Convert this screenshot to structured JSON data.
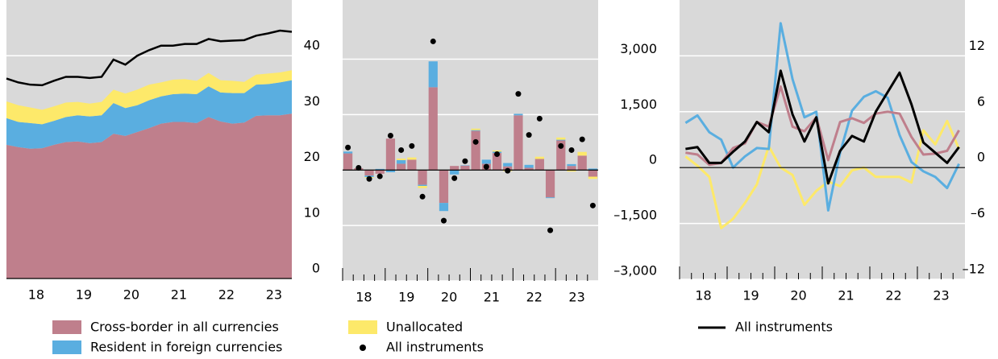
{
  "chart_data": [
    {
      "type": "area",
      "categories": [
        null,
        null,
        "18",
        null,
        null,
        null,
        "19",
        null,
        null,
        null,
        "20",
        null,
        null,
        null,
        "21",
        null,
        null,
        null,
        "22",
        null,
        null,
        null,
        "23",
        null,
        null
      ],
      "series": [
        {
          "name": "Cross-border in all currencies",
          "color": "#bf7f8c",
          "values": [
            24.0,
            23.6,
            23.3,
            23.4,
            24.0,
            24.5,
            24.6,
            24.3,
            24.5,
            26.0,
            25.6,
            26.3,
            27.0,
            27.8,
            28.1,
            28.1,
            27.9,
            29.0,
            28.2,
            27.8,
            28.0,
            29.2,
            29.3,
            29.3,
            29.6
          ]
        },
        {
          "name": "Resident in foreign currencies",
          "color": "#5aaee0",
          "values": [
            4.8,
            4.5,
            4.6,
            4.3,
            4.3,
            4.5,
            4.7,
            4.8,
            4.8,
            5.5,
            5.0,
            4.8,
            5.0,
            4.9,
            5.0,
            5.1,
            5.2,
            5.5,
            5.2,
            5.5,
            5.3,
            5.6,
            5.6,
            5.9,
            6.0
          ]
        },
        {
          "name": "Unallocated",
          "color": "#fde96a",
          "values": [
            3.0,
            3.0,
            2.8,
            2.6,
            2.6,
            2.6,
            2.4,
            2.3,
            2.4,
            2.4,
            2.6,
            2.8,
            2.8,
            2.5,
            2.6,
            2.6,
            2.4,
            2.4,
            2.2,
            2.2,
            2.0,
            1.8,
            1.9,
            1.8,
            1.8
          ]
        },
        {
          "type": "line",
          "color": "#000000",
          "values": [
            35.9,
            35.2,
            34.8,
            34.7,
            35.5,
            36.2,
            36.2,
            36.0,
            36.2,
            39.3,
            38.4,
            40.0,
            41.0,
            41.8,
            41.8,
            42.1,
            42.1,
            43.0,
            42.6,
            42.7,
            42.8,
            43.6,
            44.0,
            44.5,
            44.3
          ]
        }
      ],
      "ylim": [
        0,
        50
      ],
      "yticks": [
        0,
        10,
        20,
        30,
        40
      ],
      "grid": true
    },
    {
      "type": "bar",
      "categories": [
        null,
        "18",
        null,
        null,
        null,
        "19",
        null,
        null,
        null,
        "20",
        null,
        null,
        null,
        "21",
        null,
        null,
        null,
        "22",
        null,
        null,
        null,
        "23",
        null,
        null
      ],
      "series": [
        {
          "color": "#bf7f8c",
          "values": [
            450,
            50,
            -150,
            -100,
            850,
            170,
            280,
            -400,
            2240,
            -890,
            110,
            120,
            1060,
            170,
            460,
            100,
            1480,
            60,
            300,
            -740,
            800,
            110,
            390,
            -180
          ]
        },
        {
          "color": "#5aaee0",
          "values": [
            50,
            0,
            -40,
            30,
            -60,
            100,
            0,
            -30,
            700,
            -220,
            -120,
            10,
            20,
            110,
            40,
            90,
            40,
            80,
            0,
            -20,
            20,
            50,
            0,
            40
          ]
        },
        {
          "color": "#fde96a",
          "values": [
            0,
            0,
            -20,
            0,
            0,
            40,
            60,
            -60,
            0,
            0,
            0,
            0,
            40,
            0,
            30,
            -30,
            0,
            0,
            60,
            0,
            60,
            -40,
            100,
            -60
          ]
        },
        {
          "name": "All instruments",
          "type": "scatter",
          "color": "#000000",
          "values": [
            610,
            60,
            -240,
            -170,
            930,
            540,
            650,
            -720,
            3480,
            -1370,
            -220,
            240,
            760,
            90,
            430,
            -20,
            2060,
            950,
            1390,
            -1630,
            650,
            540,
            830,
            -960
          ]
        }
      ],
      "ylim": [
        -3000,
        4600
      ],
      "yticks": [
        {
          "value": -3000,
          "label": "–3,000"
        },
        {
          "value": -1500,
          "label": "–1,500"
        },
        0,
        {
          "value": 1500,
          "label": "1,500"
        },
        {
          "value": 3000,
          "label": "3,000"
        }
      ],
      "grid": true
    },
    {
      "type": "line",
      "categories": [
        null,
        "18",
        null,
        null,
        null,
        "19",
        null,
        null,
        null,
        "20",
        null,
        null,
        null,
        "21",
        null,
        null,
        null,
        "22",
        null,
        null,
        null,
        "23",
        null,
        null
      ],
      "series": [
        {
          "color": "#fde96a",
          "values": [
            1.2,
            0.2,
            -1.0,
            -6.5,
            -5.5,
            -3.8,
            -1.8,
            2.3,
            0.0,
            -0.8,
            -4.0,
            -2.5,
            -1.5,
            -2.0,
            -0.3,
            0.0,
            -1.0,
            -1.0,
            -1.0,
            -1.6,
            4.0,
            2.5,
            5.0,
            2.0
          ]
        },
        {
          "color": "#5aaee0",
          "values": [
            4.8,
            5.6,
            3.8,
            3.0,
            0.0,
            1.2,
            2.1,
            2.0,
            15.5,
            9.5,
            5.4,
            6.0,
            -4.6,
            1.6,
            6.1,
            7.6,
            8.2,
            7.5,
            3.5,
            0.6,
            -0.4,
            -1.0,
            -2.2,
            0.4
          ]
        },
        {
          "color": "#bf7f8c",
          "values": [
            1.6,
            1.4,
            0.3,
            0.5,
            2.1,
            2.6,
            4.9,
            4.4,
            8.7,
            4.4,
            3.9,
            5.4,
            0.8,
            4.9,
            5.3,
            4.8,
            5.8,
            6.0,
            5.8,
            3.3,
            1.4,
            1.5,
            1.8,
            4.0
          ]
        },
        {
          "name": "All instruments",
          "color": "#000000",
          "values": [
            2.0,
            2.2,
            0.5,
            0.5,
            1.7,
            2.8,
            4.9,
            3.8,
            10.4,
            5.7,
            2.8,
            5.4,
            -1.7,
            1.8,
            3.4,
            2.8,
            6.0,
            8.1,
            10.2,
            6.8,
            2.7,
            1.6,
            0.5,
            2.2
          ]
        }
      ],
      "ylim": [
        -12,
        18
      ],
      "yticks": [
        {
          "value": -12,
          "label": "–12"
        },
        {
          "value": -6,
          "label": "–6"
        },
        0,
        6,
        12
      ],
      "grid": true
    }
  ]
}
